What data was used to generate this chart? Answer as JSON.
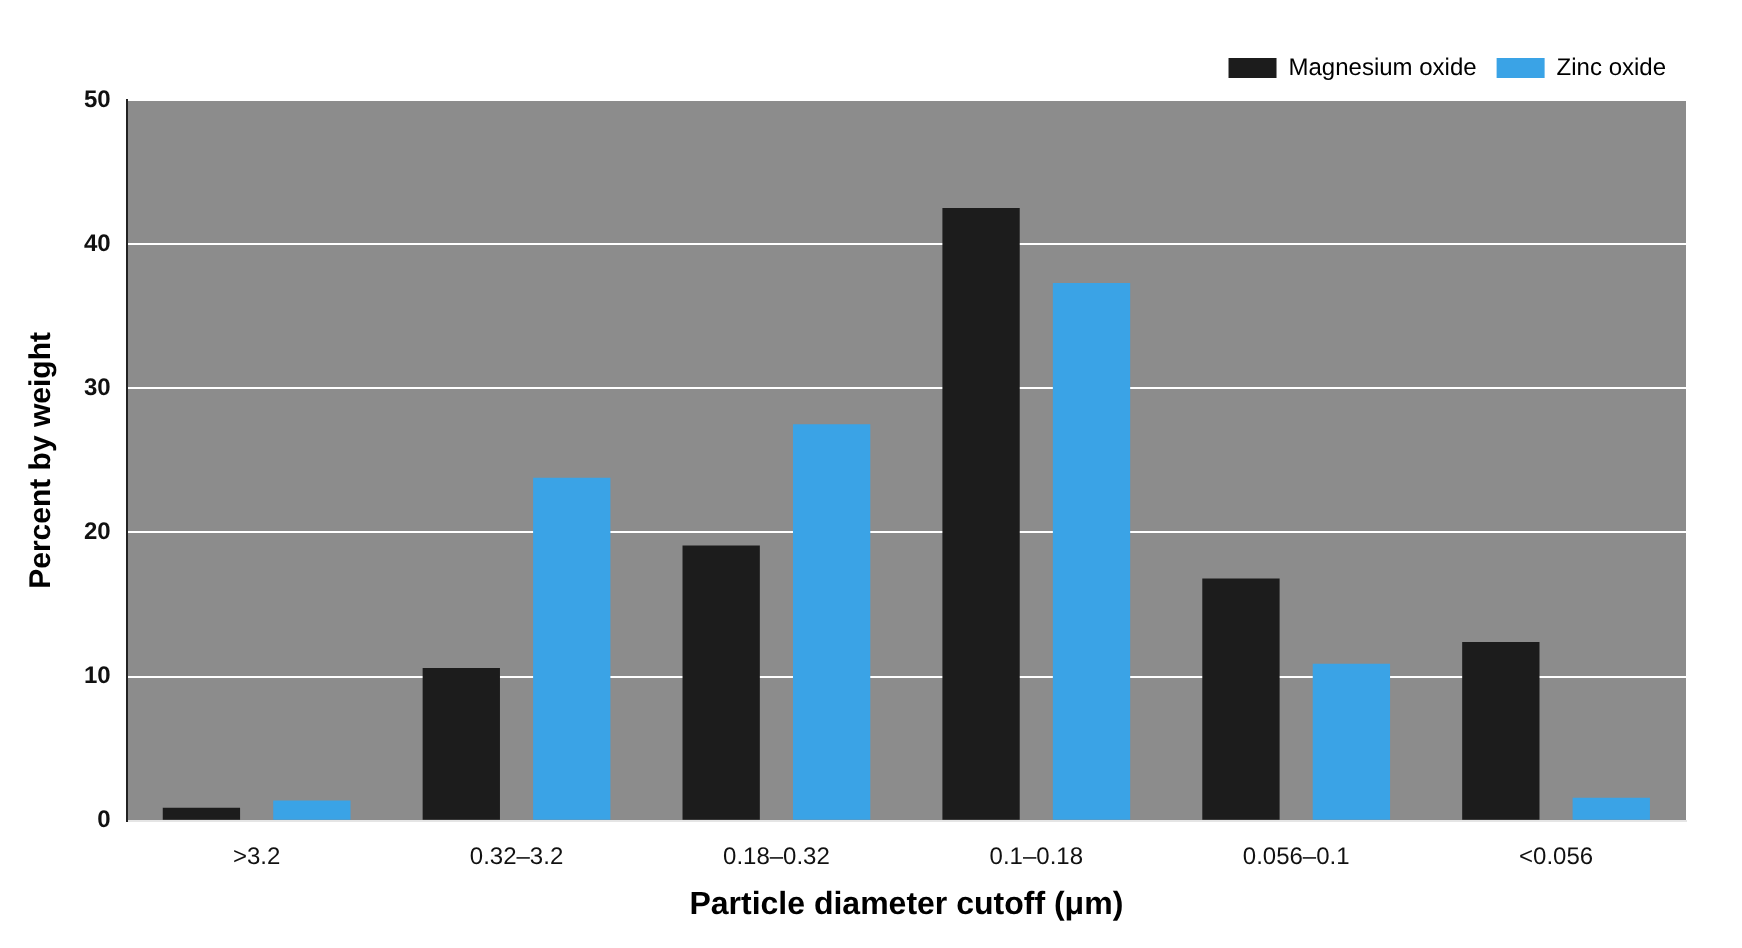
{
  "chart_data": {
    "type": "bar",
    "xlabel": "Particle diameter cutoff (μm)",
    "ylabel": "Percent by weight",
    "categories": [
      ">3.2",
      "0.32–3.2",
      "0.18–0.32",
      "0.1–0.18",
      "0.056–0.1",
      "<0.056"
    ],
    "series": [
      {
        "name": "Magnesium oxide",
        "color": "#1c1c1c",
        "values": [
          0.9,
          10.6,
          19.1,
          42.5,
          16.8,
          12.4
        ]
      },
      {
        "name": "Zinc oxide",
        "color": "#3aa3e6",
        "values": [
          1.4,
          23.8,
          27.5,
          37.3,
          10.9,
          1.6
        ]
      }
    ],
    "ylim": [
      0,
      50
    ],
    "yticks": [
      0,
      10,
      20,
      30,
      40,
      50
    ],
    "grid": "y",
    "legend": "top right"
  }
}
